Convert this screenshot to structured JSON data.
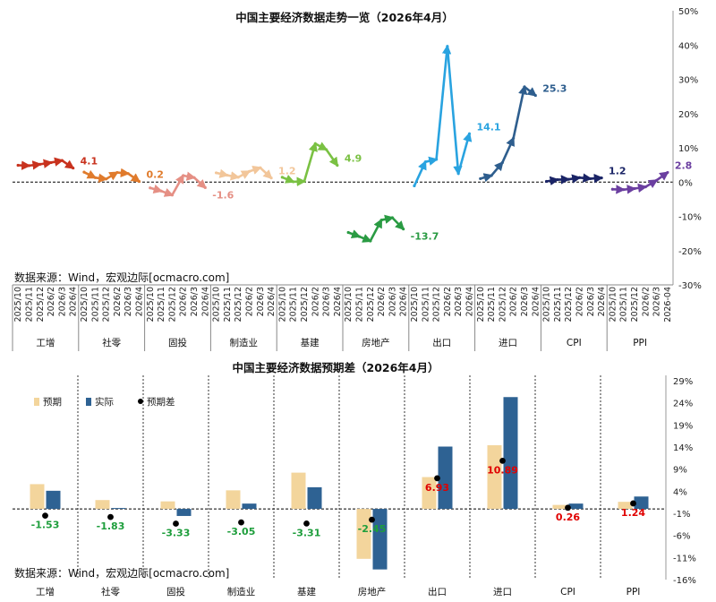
{
  "chart_data": [
    {
      "type": "line",
      "title": "中国主要经济数据走势一览（2026年4月）",
      "source": "数据来源：Wind，宏观边际[ocmacro.com]",
      "y_ticks": [
        "50%",
        "40%",
        "30%",
        "20%",
        "10%",
        "0%",
        "-10%",
        "-20%",
        "-30%"
      ],
      "ylim": [
        -30,
        50
      ],
      "groups": [
        {
          "name": "工增",
          "color": "#c8321e",
          "x": [
            "2025/10",
            "2025/11",
            "2025/12",
            "2026/2",
            "2026/3",
            "2026/4"
          ],
          "values": [
            4.9,
            4.8,
            5.2,
            5.7,
            6.3,
            4.1
          ],
          "last_label": "4.1"
        },
        {
          "name": "社零",
          "color": "#e07b2c",
          "x": [
            "2025/10",
            "2025/11",
            "2025/12",
            "2026/2",
            "2026/3",
            "2026/4"
          ],
          "values": [
            2.9,
            1.3,
            0.9,
            2.8,
            2.5,
            0.2
          ],
          "last_label": "0.2"
        },
        {
          "name": "固投",
          "color": "#e58f84",
          "x": [
            "2025/10",
            "2025/11",
            "2025/12",
            "2026/2",
            "2026/3",
            "2026/4"
          ],
          "values": [
            -1.7,
            -2.6,
            -3.8,
            1.9,
            1.3,
            -1.6
          ],
          "last_label": "-1.6"
        },
        {
          "name": "制造业",
          "color": "#f2c69a",
          "x": [
            "2025/10",
            "2025/11",
            "2025/12",
            "2026/2",
            "2026/3",
            "2026/4"
          ],
          "values": [
            2.7,
            2.0,
            1.4,
            3.1,
            4.2,
            1.2
          ],
          "last_label": "1.2"
        },
        {
          "name": "基建",
          "color": "#7ac143",
          "x": [
            "2025/10",
            "2025/11",
            "2025/12",
            "2026/2",
            "2026/3",
            "2026/4"
          ],
          "values": [
            1.4,
            0.1,
            0.2,
            11.2,
            9.5,
            4.9
          ],
          "last_label": "4.9"
        },
        {
          "name": "房地产",
          "color": "#2a9b43",
          "x": [
            "2025/10",
            "2025/11",
            "2025/12",
            "2026/2",
            "2026/3",
            "2026/4"
          ],
          "values": [
            -14.7,
            -15.9,
            -17.2,
            -11.1,
            -10.4,
            -13.7
          ],
          "last_label": "-13.7"
        },
        {
          "name": "出口",
          "color": "#29a3e0",
          "x": [
            "2025/10",
            "2025/11",
            "2025/12",
            "2026/2",
            "2026/3",
            "2026/4"
          ],
          "values": [
            -1.1,
            5.9,
            6.6,
            39.6,
            2.5,
            14.1
          ],
          "last_label": "14.1"
        },
        {
          "name": "进口",
          "color": "#2e5e8e",
          "x": [
            "2025/10",
            "2025/11",
            "2025/12",
            "2026/2",
            "2026/3",
            "2026/4"
          ],
          "values": [
            1.0,
            1.9,
            5.7,
            12.8,
            27.8,
            25.3
          ],
          "last_label": "25.3"
        },
        {
          "name": "CPI",
          "color": "#1a2466",
          "x": [
            "2025/10",
            "2025/11",
            "2025/12",
            "2026/2",
            "2026/3",
            "2026/4"
          ],
          "values": [
            0.2,
            0.7,
            0.8,
            1.3,
            1.0,
            1.2
          ],
          "last_label": "1.2"
        },
        {
          "name": "PPI",
          "color": "#6b3fa0",
          "x": [
            "2025/10",
            "2025/11",
            "2025/12",
            "2026/2",
            "2026/3",
            "2026/4"
          ],
          "values": [
            -2.1,
            -2.2,
            -1.9,
            -1.4,
            0.5,
            2.8
          ],
          "last_label": "2.8"
        }
      ],
      "last_x_label": "2026-04"
    },
    {
      "type": "bar",
      "title": "中国主要经济数据预期差（2026年4月）",
      "source": "数据来源：Wind，宏观边际[ocmacro.com]",
      "legend": [
        "预期",
        "实际",
        "预期差"
      ],
      "y_ticks": [
        "29%",
        "24%",
        "19%",
        "14%",
        "9%",
        "4%",
        "-1%",
        "-6%",
        "-11%",
        "-16%"
      ],
      "ylim": [
        -16,
        29
      ],
      "categories": [
        "工增",
        "社零",
        "固投",
        "制造业",
        "基建",
        "房地产",
        "出口",
        "进口",
        "CPI",
        "PPI"
      ],
      "series": [
        {
          "name": "预期",
          "color": "#f3d59c",
          "values": [
            5.6,
            2.0,
            1.7,
            4.2,
            8.2,
            -11.3,
            7.2,
            14.4,
            0.9,
            1.6
          ]
        },
        {
          "name": "实际",
          "color": "#2e6293",
          "values": [
            4.1,
            0.2,
            -1.6,
            1.2,
            4.9,
            -13.7,
            14.1,
            25.3,
            1.2,
            2.8
          ]
        },
        {
          "name": "预期差",
          "color": "#000000",
          "values": [
            -1.53,
            -1.83,
            -3.33,
            -3.05,
            -3.31,
            -2.45,
            6.93,
            10.89,
            0.26,
            1.24
          ]
        }
      ],
      "diff_labels": [
        "-1.53",
        "-1.83",
        "-3.33",
        "-3.05",
        "-3.31",
        "-2.45",
        "6.93",
        "10.89",
        "0.26",
        "1.24"
      ],
      "colors": {
        "positive": "#e00000",
        "negative": "#1e9e3c"
      }
    }
  ]
}
